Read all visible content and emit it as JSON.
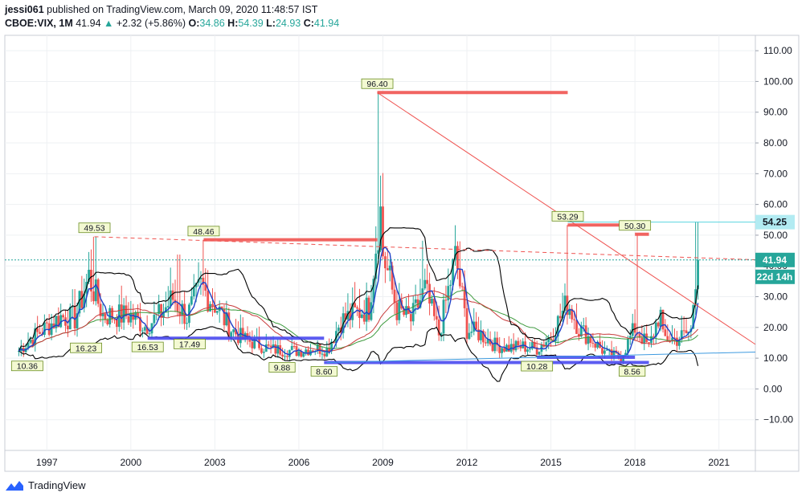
{
  "header": {
    "publisher": "jessi061",
    "published_text": "published on TradingView.com, March 09, 2020 11:48:57 IST",
    "symbol": "CBOE:VIX, 1M",
    "last": "41.94",
    "change_arrow": "▲",
    "change": "+2.32 (+5.86%)",
    "o_label": "O:",
    "o_value": "34.86",
    "h_label": "H:",
    "h_value": "54.39",
    "l_label": "L:",
    "l_value": "24.93",
    "c_label": "C:",
    "c_value": "41.94"
  },
  "footer": {
    "brand": "TradingView",
    "logo_icon": "tradingview-logo-icon"
  },
  "colors": {
    "up": "#26a69a",
    "down": "#ef5350",
    "price_label": "#26a69a",
    "high_label": "#b2ebf2",
    "trend": "#ef5350",
    "support": "#4a4af0",
    "bollinger": "#000000",
    "ma_fast": "#1e40c8",
    "ma_green": "#3c9a3c",
    "ma_red": "#c83c3c",
    "blue_trend": "#3d9ae0"
  },
  "chart_data": {
    "type": "candlestick",
    "title": "CBOE:VIX, 1M",
    "x_range": [
      1995.5,
      2022.3
    ],
    "ylim": [
      -20,
      115
    ],
    "y_ticks": [
      110,
      100,
      90,
      80,
      70,
      60,
      50,
      40,
      30,
      20,
      10,
      0,
      -10
    ],
    "y_tick_labels": [
      "110.00",
      "100.00",
      "90.00",
      "80.00",
      "70.00",
      "60.00",
      "50.00",
      "40.00",
      "30.00",
      "20.00",
      "10.00",
      "0.00",
      "−10.00"
    ],
    "x_ticks": [
      1997,
      2000,
      2003,
      2006,
      2009,
      2012,
      2015,
      2018,
      2021
    ],
    "x_tick_labels": [
      "1997",
      "2000",
      "2003",
      "2006",
      "2009",
      "2012",
      "2015",
      "2018",
      "2021"
    ],
    "price_labels": [
      {
        "text": "54.25",
        "value": 54.25,
        "style": "high"
      },
      {
        "text": "41.94",
        "value": 41.94,
        "style": "last"
      },
      {
        "text": "22d 14h",
        "value": 36.5,
        "style": "countdown"
      }
    ],
    "annotations": [
      {
        "text": "10.36",
        "x": 1996.3,
        "y": 10.36,
        "dir": "below"
      },
      {
        "text": "49.53",
        "x": 1998.7,
        "y": 49.53,
        "dir": "above"
      },
      {
        "text": "16.23",
        "x": 1998.4,
        "y": 16.23,
        "dir": "below"
      },
      {
        "text": "16.53",
        "x": 2000.6,
        "y": 16.53,
        "dir": "below"
      },
      {
        "text": "48.46",
        "x": 2002.6,
        "y": 48.46,
        "dir": "above"
      },
      {
        "text": "17.49",
        "x": 2002.1,
        "y": 17.49,
        "dir": "below"
      },
      {
        "text": "9.88",
        "x": 2005.4,
        "y": 9.88,
        "dir": "below"
      },
      {
        "text": "8.60",
        "x": 2006.9,
        "y": 8.6,
        "dir": "below"
      },
      {
        "text": "96.40",
        "x": 2008.8,
        "y": 96.4,
        "dir": "above"
      },
      {
        "text": "10.28",
        "x": 2014.5,
        "y": 10.28,
        "dir": "below"
      },
      {
        "text": "53.29",
        "x": 2015.6,
        "y": 53.29,
        "dir": "above"
      },
      {
        "text": "50.30",
        "x": 2018.0,
        "y": 50.3,
        "dir": "above"
      },
      {
        "text": "8.56",
        "x": 2017.9,
        "y": 8.56,
        "dir": "below"
      }
    ],
    "levels": [
      {
        "name": "resistance-2008",
        "x1": 2008.8,
        "x2": 2015.6,
        "y": 96.4,
        "color": "red"
      },
      {
        "name": "resistance-2002",
        "x1": 2002.6,
        "x2": 2008.8,
        "y": 48.5,
        "color": "red"
      },
      {
        "name": "resistance-2015",
        "x1": 2015.6,
        "x2": 2018.5,
        "y": 53.3,
        "color": "red"
      },
      {
        "name": "resistance-2018",
        "x1": 2018.0,
        "x2": 2018.5,
        "y": 50.3,
        "color": "red"
      },
      {
        "name": "support-2001",
        "x1": 2000.6,
        "x2": 2006.9,
        "y": 16.5,
        "color": "blue"
      },
      {
        "name": "support-2007",
        "x1": 2006.9,
        "x2": 2018.5,
        "y": 8.6,
        "color": "blue"
      },
      {
        "name": "support-2014",
        "x1": 2014.5,
        "x2": 2018.0,
        "y": 10.3,
        "color": "blue"
      }
    ],
    "trendlines": [
      {
        "name": "downtrend-2008",
        "x1": 2008.8,
        "y1": 96.4,
        "x2": 2022.3,
        "y2": 14.5,
        "style": "solid",
        "color": "red"
      },
      {
        "name": "dashed-1998",
        "x1": 1998.7,
        "y1": 49.5,
        "x2": 2022.3,
        "y2": 42.0,
        "style": "dashed",
        "color": "red"
      },
      {
        "name": "rising-support",
        "x1": 2007.0,
        "y1": 8.6,
        "x2": 2022.3,
        "y2": 12.0,
        "style": "solid",
        "color": "lightblue"
      }
    ],
    "closes": [
      {
        "x": 1996,
        "y": 12.4
      },
      {
        "x": 1996.5,
        "y": 16.8
      },
      {
        "x": 1997,
        "y": 20.2
      },
      {
        "x": 1997.5,
        "y": 23.5
      },
      {
        "x": 1998,
        "y": 22.8
      },
      {
        "x": 1998.5,
        "y": 36.5
      },
      {
        "x": 1999,
        "y": 24.1
      },
      {
        "x": 1999.5,
        "y": 23.8
      },
      {
        "x": 2000,
        "y": 23.9
      },
      {
        "x": 2000.5,
        "y": 20.5
      },
      {
        "x": 2001,
        "y": 23.7
      },
      {
        "x": 2001.5,
        "y": 29.5
      },
      {
        "x": 2002,
        "y": 23.4
      },
      {
        "x": 2002.5,
        "y": 33.2
      },
      {
        "x": 2003,
        "y": 27.6
      },
      {
        "x": 2003.5,
        "y": 20.1
      },
      {
        "x": 2004,
        "y": 16.2
      },
      {
        "x": 2004.5,
        "y": 14.8
      },
      {
        "x": 2005,
        "y": 12.8
      },
      {
        "x": 2005.5,
        "y": 12.6
      },
      {
        "x": 2006,
        "y": 12.3
      },
      {
        "x": 2006.5,
        "y": 13.4
      },
      {
        "x": 2007,
        "y": 12.8
      },
      {
        "x": 2007.5,
        "y": 22.1
      },
      {
        "x": 2008,
        "y": 24.6
      },
      {
        "x": 2008.5,
        "y": 26.4
      },
      {
        "x": 2008.9,
        "y": 59.9
      },
      {
        "x": 2009,
        "y": 44.1
      },
      {
        "x": 2009.5,
        "y": 25.9
      },
      {
        "x": 2010,
        "y": 22.3
      },
      {
        "x": 2010.5,
        "y": 32.1
      },
      {
        "x": 2011,
        "y": 17.8
      },
      {
        "x": 2011.6,
        "y": 42.9
      },
      {
        "x": 2012,
        "y": 19.4
      },
      {
        "x": 2012.5,
        "y": 17.8
      },
      {
        "x": 2013,
        "y": 14.3
      },
      {
        "x": 2013.5,
        "y": 13.4
      },
      {
        "x": 2014,
        "y": 13.8
      },
      {
        "x": 2014.5,
        "y": 13.1
      },
      {
        "x": 2015,
        "y": 17.1
      },
      {
        "x": 2015.6,
        "y": 28.4
      },
      {
        "x": 2016,
        "y": 19.7
      },
      {
        "x": 2016.5,
        "y": 15.6
      },
      {
        "x": 2017,
        "y": 11.2
      },
      {
        "x": 2017.5,
        "y": 10.3
      },
      {
        "x": 2018,
        "y": 19.9
      },
      {
        "x": 2018.5,
        "y": 13.5
      },
      {
        "x": 2018.9,
        "y": 25.4
      },
      {
        "x": 2019,
        "y": 16.6
      },
      {
        "x": 2019.5,
        "y": 16.2
      },
      {
        "x": 2020,
        "y": 18.8
      },
      {
        "x": 2020.2,
        "y": 41.94
      }
    ]
  }
}
